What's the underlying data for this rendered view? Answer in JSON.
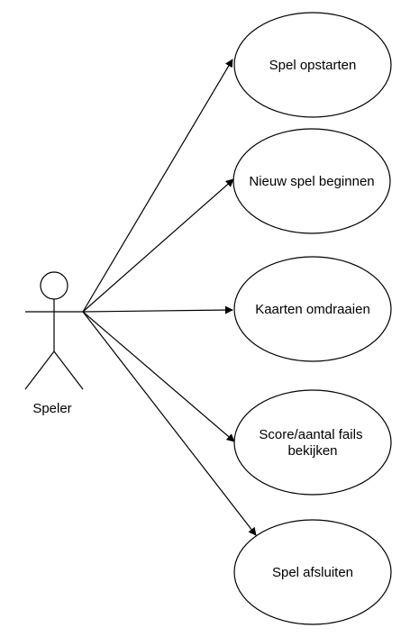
{
  "actor": {
    "name": "Speler"
  },
  "use_cases": [
    {
      "lines": [
        "Spel opstarten"
      ]
    },
    {
      "lines": [
        "Nieuw spel beginnen"
      ]
    },
    {
      "lines": [
        "Kaarten omdraaien"
      ]
    },
    {
      "lines": [
        "Score/aantal fails",
        "bekijken"
      ]
    },
    {
      "lines": [
        "Spel afsluiten"
      ]
    }
  ],
  "colors": {
    "stroke": "#000000",
    "fill": "#ffffff"
  }
}
